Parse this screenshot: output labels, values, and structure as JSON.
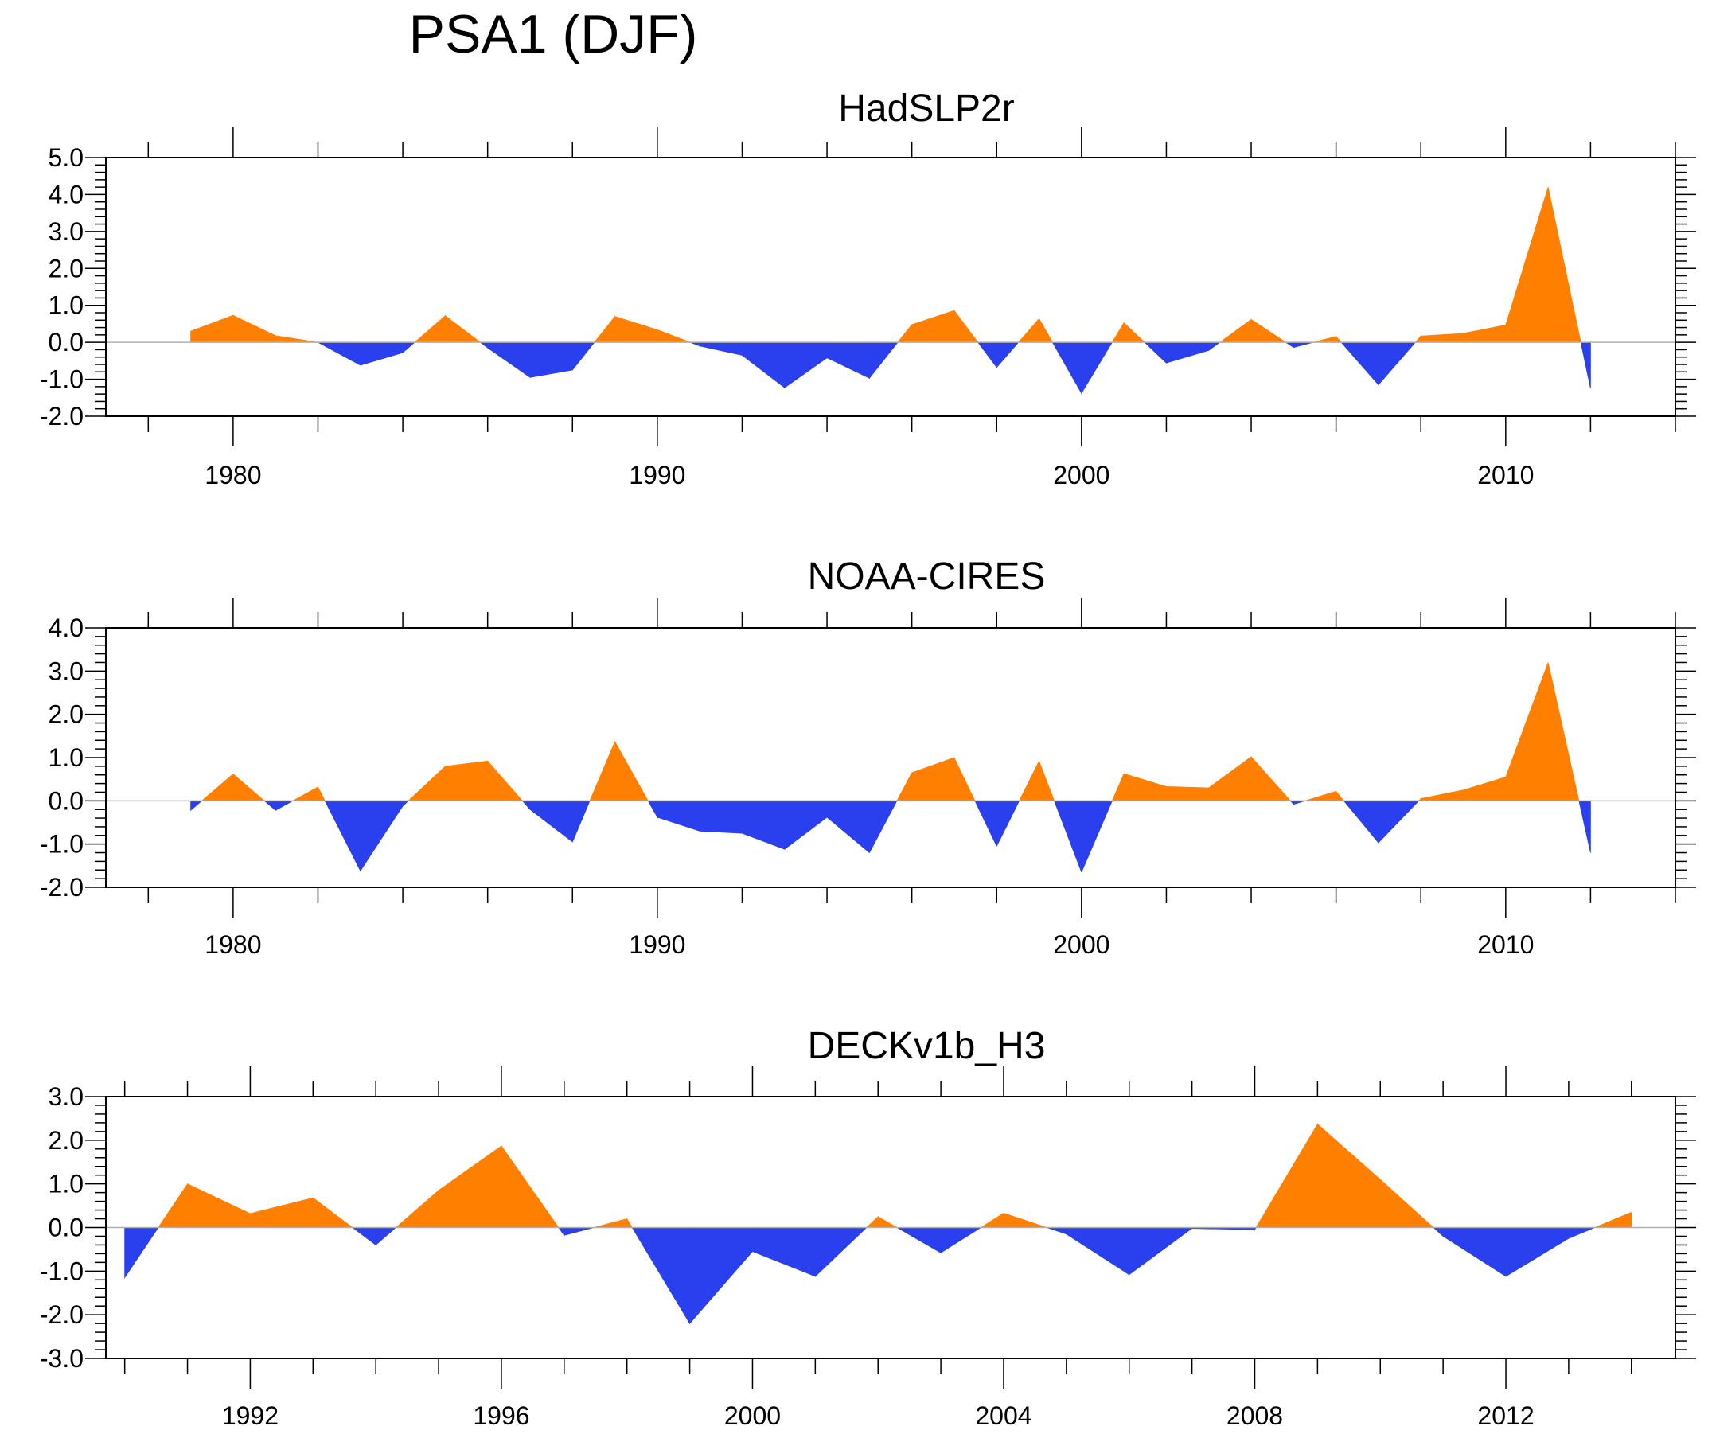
{
  "title": "PSA1 (DJF)",
  "colors": {
    "positive": "#ff8000",
    "negative": "#2a40ee",
    "axis": "#000000",
    "zero_line": "#b0b0b0"
  },
  "chart_data": [
    {
      "type": "area",
      "title": "HadSLP2r",
      "x": [
        1979,
        1980,
        1981,
        1982,
        1983,
        1984,
        1985,
        1986,
        1987,
        1988,
        1989,
        1990,
        1991,
        1992,
        1993,
        1994,
        1995,
        1996,
        1997,
        1998,
        1999,
        2000,
        2001,
        2002,
        2003,
        2004,
        2005,
        2006,
        2007,
        2008,
        2009,
        2010,
        2011,
        2012
      ],
      "values": [
        0.3,
        0.73,
        0.18,
        0.0,
        -0.62,
        -0.28,
        0.72,
        -0.15,
        -0.95,
        -0.75,
        0.7,
        0.34,
        -0.1,
        -0.35,
        -1.23,
        -0.42,
        -0.97,
        0.48,
        0.86,
        -0.68,
        0.64,
        -1.38,
        0.53,
        -0.56,
        -0.22,
        0.62,
        -0.14,
        0.16,
        -1.15,
        0.17,
        0.24,
        0.47,
        4.2,
        -1.25
      ],
      "xlim": [
        1977,
        2014
      ],
      "ylim": [
        -2.0,
        5.0
      ],
      "y_ticks": [
        "-2.0",
        "-1.0",
        "0.0",
        "1.0",
        "2.0",
        "3.0",
        "4.0",
        "5.0"
      ],
      "x_major_ticks": [
        1980,
        1990,
        2000,
        2010
      ],
      "x_labels": [
        "1980",
        "1990",
        "2000",
        "2010"
      ]
    },
    {
      "type": "area",
      "title": "NOAA-CIRES",
      "x": [
        1979,
        1980,
        1981,
        1982,
        1983,
        1984,
        1985,
        1986,
        1987,
        1988,
        1989,
        1990,
        1991,
        1992,
        1993,
        1994,
        1995,
        1996,
        1997,
        1998,
        1999,
        2000,
        2001,
        2002,
        2003,
        2004,
        2005,
        2006,
        2007,
        2008,
        2009,
        2010,
        2011,
        2012
      ],
      "values": [
        -0.22,
        0.62,
        -0.22,
        0.32,
        -1.62,
        -0.12,
        0.8,
        0.92,
        -0.2,
        -0.95,
        1.37,
        -0.38,
        -0.7,
        -0.75,
        -1.12,
        -0.38,
        -1.2,
        0.65,
        1.0,
        -1.05,
        0.92,
        -1.65,
        0.63,
        0.33,
        0.3,
        1.02,
        -0.08,
        0.22,
        -0.97,
        0.05,
        0.25,
        0.55,
        3.2,
        -1.2
      ],
      "xlim": [
        1977,
        2014
      ],
      "ylim": [
        -2.0,
        4.0
      ],
      "y_ticks": [
        "-2.0",
        "-1.0",
        "0.0",
        "1.0",
        "2.0",
        "3.0",
        "4.0"
      ],
      "x_major_ticks": [
        1980,
        1990,
        2000,
        2010
      ],
      "x_labels": [
        "1980",
        "1990",
        "2000",
        "2010"
      ]
    },
    {
      "type": "area",
      "title": "DECKv1b_H3",
      "x": [
        1990,
        1991,
        1992,
        1993,
        1994,
        1995,
        1996,
        1997,
        1998,
        1999,
        2000,
        2001,
        2002,
        2003,
        2004,
        2005,
        2006,
        2007,
        2008,
        2009,
        2010,
        2011,
        2012,
        2013,
        2014
      ],
      "values": [
        -1.15,
        1.0,
        0.32,
        0.68,
        -0.4,
        0.85,
        1.87,
        -0.18,
        0.2,
        -2.2,
        -0.55,
        -1.12,
        0.25,
        -0.58,
        0.33,
        -0.15,
        -1.08,
        -0.02,
        -0.05,
        2.37,
        1.1,
        -0.2,
        -1.12,
        -0.25,
        0.35
      ],
      "xlim": [
        1989.7,
        2014.7
      ],
      "ylim": [
        -3.0,
        3.0
      ],
      "y_ticks": [
        "-3.0",
        "-2.0",
        "-1.0",
        "0.0",
        "1.0",
        "2.0",
        "3.0"
      ],
      "x_major_ticks": [
        1992,
        1996,
        2000,
        2004,
        2008,
        2012
      ],
      "x_labels": [
        "1992",
        "1996",
        "2000",
        "2004",
        "2008",
        "2012"
      ]
    }
  ]
}
